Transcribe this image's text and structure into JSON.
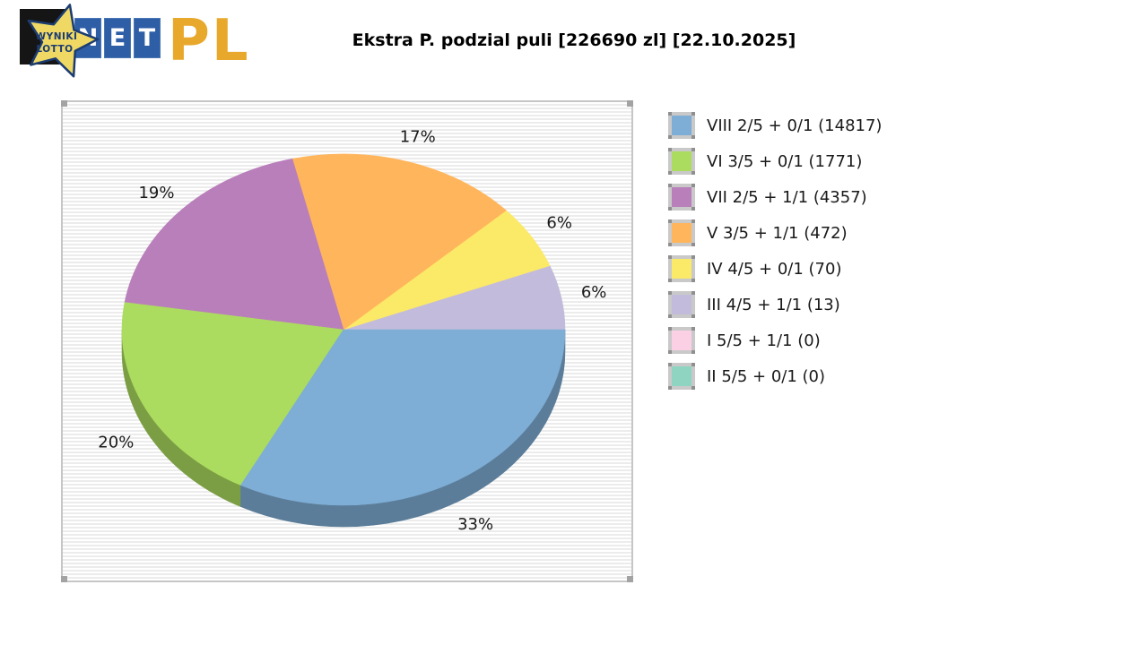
{
  "header": {
    "title": "Ekstra P. podzial puli [226690 zl] [22.10.2025]",
    "logo": {
      "star_line1": "WYNIKI",
      "star_line2": "LOTTO",
      "net_letters": [
        "N",
        "E",
        "T"
      ],
      "pl_text": "PL",
      "colors": {
        "tile_blue": "#2D5EA6",
        "pl_gold": "#E8A82B",
        "star_gold": "#EFD964",
        "star_navy": "#1C3C72"
      }
    }
  },
  "chart_data": {
    "type": "pie",
    "style": "3d",
    "title": "Ekstra P. podzial puli [226690 zl] [22.10.2025]",
    "pool_total_zl": "226690",
    "date": "22.10.2025",
    "legend_position": "right",
    "start_angle_deg": 0,
    "direction": "ccw",
    "slices": [
      {
        "name": "III 4/5 + 1/1",
        "winners": 13,
        "pct": 6,
        "label": "6%",
        "color": "#C3BBDB"
      },
      {
        "name": "IV 4/5 + 0/1",
        "winners": 70,
        "pct": 6,
        "label": "6%",
        "color": "#FBE968"
      },
      {
        "name": "V 3/5 + 1/1",
        "winners": 472,
        "pct": 17,
        "label": "17%",
        "color": "#FFB55C"
      },
      {
        "name": "VII 2/5 + 1/1",
        "winners": 4357,
        "pct": 19,
        "label": "19%",
        "color": "#B97FBB"
      },
      {
        "name": "VI 3/5 + 0/1",
        "winners": 1771,
        "pct": 20,
        "label": "20%",
        "color": "#ABDC5F"
      },
      {
        "name": "VIII 2/5 + 0/1",
        "winners": 14817,
        "pct": 33,
        "label": "33%",
        "color": "#7EADD5"
      },
      {
        "name": "I 5/5 + 1/1",
        "winners": 0,
        "pct": 0,
        "label": "",
        "color": "#FBD0E5"
      },
      {
        "name": "II 5/5 + 0/1",
        "winners": 0,
        "pct": 0,
        "label": "",
        "color": "#8FD4C1"
      }
    ]
  },
  "legend": {
    "items": [
      {
        "label": "VIII 2/5 + 0/1 (14817)",
        "color": "#7EADD5"
      },
      {
        "label": "VI 3/5 + 0/1 (1771)",
        "color": "#ABDC5F"
      },
      {
        "label": "VII 2/5 + 1/1 (4357)",
        "color": "#B97FBB"
      },
      {
        "label": "V 3/5 + 1/1 (472)",
        "color": "#FFB55C"
      },
      {
        "label": "IV 4/5 + 0/1 (70)",
        "color": "#FBE968"
      },
      {
        "label": "III 4/5 + 1/1 (13)",
        "color": "#C3BBDB"
      },
      {
        "label": "I 5/5 + 1/1 (0)",
        "color": "#FBD0E5"
      },
      {
        "label": "II 5/5 + 0/1 (0)",
        "color": "#8FD4C1"
      }
    ]
  }
}
